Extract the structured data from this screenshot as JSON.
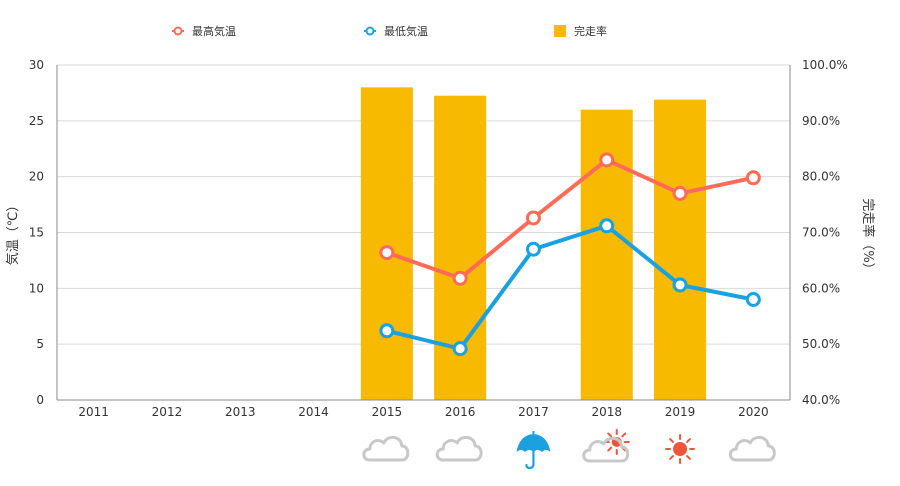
{
  "chart_data": {
    "type": "bar",
    "categories": [
      "2011",
      "2012",
      "2013",
      "2014",
      "2015",
      "2016",
      "2017",
      "2018",
      "2019",
      "2020"
    ],
    "series": [
      {
        "name": "最高気温",
        "kind": "line",
        "axis": "left",
        "color": "#FF6B57",
        "values": [
          null,
          null,
          null,
          null,
          13.2,
          10.9,
          16.3,
          21.5,
          18.5,
          19.9
        ]
      },
      {
        "name": "最低気温",
        "kind": "line",
        "axis": "left",
        "color": "#1BA1E2",
        "values": [
          null,
          null,
          null,
          null,
          6.2,
          4.6,
          13.5,
          15.6,
          10.3,
          9.0
        ]
      },
      {
        "name": "完走率",
        "kind": "bar",
        "axis": "right",
        "color": "#F7BA00",
        "values": [
          null,
          null,
          null,
          null,
          96.0,
          94.5,
          null,
          92.0,
          93.8,
          null
        ]
      }
    ],
    "ylabel": "気温（℃）",
    "y2label": "完走率（%）",
    "ylim": [
      0,
      30
    ],
    "y2lim": [
      40,
      100
    ],
    "yticks": [
      "0",
      "5",
      "10",
      "15",
      "20",
      "25",
      "30"
    ],
    "y2ticks": [
      "40.0%",
      "50.0%",
      "60.0%",
      "70.0%",
      "80.0%",
      "90.0%",
      "100.0%"
    ],
    "legend_position": "top-center",
    "grid": true
  },
  "weather": {
    "icon_colors": {
      "cloud": "#C8C8C8",
      "umbrella": "#1BA1E2",
      "sun": "#F0553C"
    },
    "icons": [
      "",
      "",
      "",
      "",
      "cloud-icon",
      "cloud-icon",
      "umbrella-icon",
      "sun-cloud-icon",
      "sun-icon",
      "cloud-icon"
    ]
  }
}
